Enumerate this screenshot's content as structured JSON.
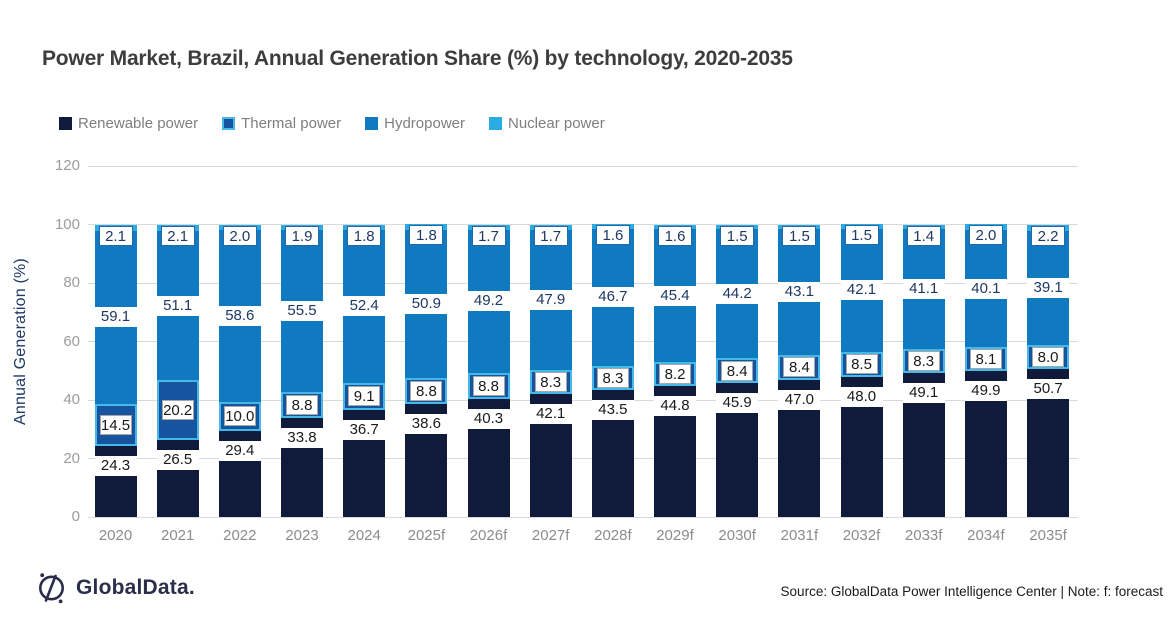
{
  "title": "Power Market, Brazil, Annual Generation Share (%) by technology, 2020-2035",
  "footer": {
    "logo_text": "GlobalData.",
    "source_text": "Source: GlobalData Power Intelligence Center | Note: f: forecast"
  },
  "colors": {
    "renewable": "#101B3C",
    "thermal_fill": "#1654A0",
    "thermal_border": "#45B8EA",
    "hydro": "#0F7AC0",
    "nuclear": "#2AACE3",
    "label_navy": "#1F3864",
    "label_dark": "#1A1A1A",
    "gridline": "#D9D9D9",
    "axis_text": "#9C9C9C",
    "legend_text": "#7F7F7F",
    "logo_navy": "#2B2E4A"
  },
  "chart_data": {
    "type": "bar",
    "subtype": "stacked-column",
    "title": "Power Market, Brazil, Annual Generation Share (%) by technology, 2020-2035",
    "xlabel": "",
    "ylabel": "Annual Generation (%)",
    "ylim": [
      0,
      120
    ],
    "yticks": [
      0,
      20,
      40,
      60,
      80,
      100,
      120
    ],
    "grid": true,
    "legend_position": "top-left",
    "categories": [
      "2020",
      "2021",
      "2022",
      "2023",
      "2024",
      "2025f",
      "2026f",
      "2027f",
      "2028f",
      "2029f",
      "2030f",
      "2031f",
      "2032f",
      "2033f",
      "2034f",
      "2035f"
    ],
    "series": [
      {
        "name": "Renewable power",
        "color": "#101B3C",
        "values": [
          24.3,
          26.5,
          29.4,
          33.8,
          36.7,
          38.6,
          40.3,
          42.1,
          43.5,
          44.8,
          45.9,
          47.0,
          48.0,
          49.1,
          49.9,
          50.7
        ]
      },
      {
        "name": "Thermal power",
        "color": "#1654A0",
        "border_color": "#45B8EA",
        "values": [
          14.5,
          20.2,
          10.0,
          8.8,
          9.1,
          8.8,
          8.8,
          8.3,
          8.3,
          8.2,
          8.4,
          8.4,
          8.5,
          8.3,
          8.1,
          8.0
        ]
      },
      {
        "name": "Hydropower",
        "color": "#0F7AC0",
        "values": [
          59.1,
          51.1,
          58.6,
          55.5,
          52.4,
          50.9,
          49.2,
          47.9,
          46.7,
          45.4,
          44.2,
          43.1,
          42.1,
          41.1,
          40.1,
          39.1
        ]
      },
      {
        "name": "Nuclear power",
        "color": "#2AACE3",
        "values": [
          2.1,
          2.1,
          2.0,
          1.9,
          1.8,
          1.8,
          1.7,
          1.7,
          1.6,
          1.6,
          1.5,
          1.5,
          1.5,
          1.4,
          2.0,
          2.2
        ]
      }
    ]
  }
}
